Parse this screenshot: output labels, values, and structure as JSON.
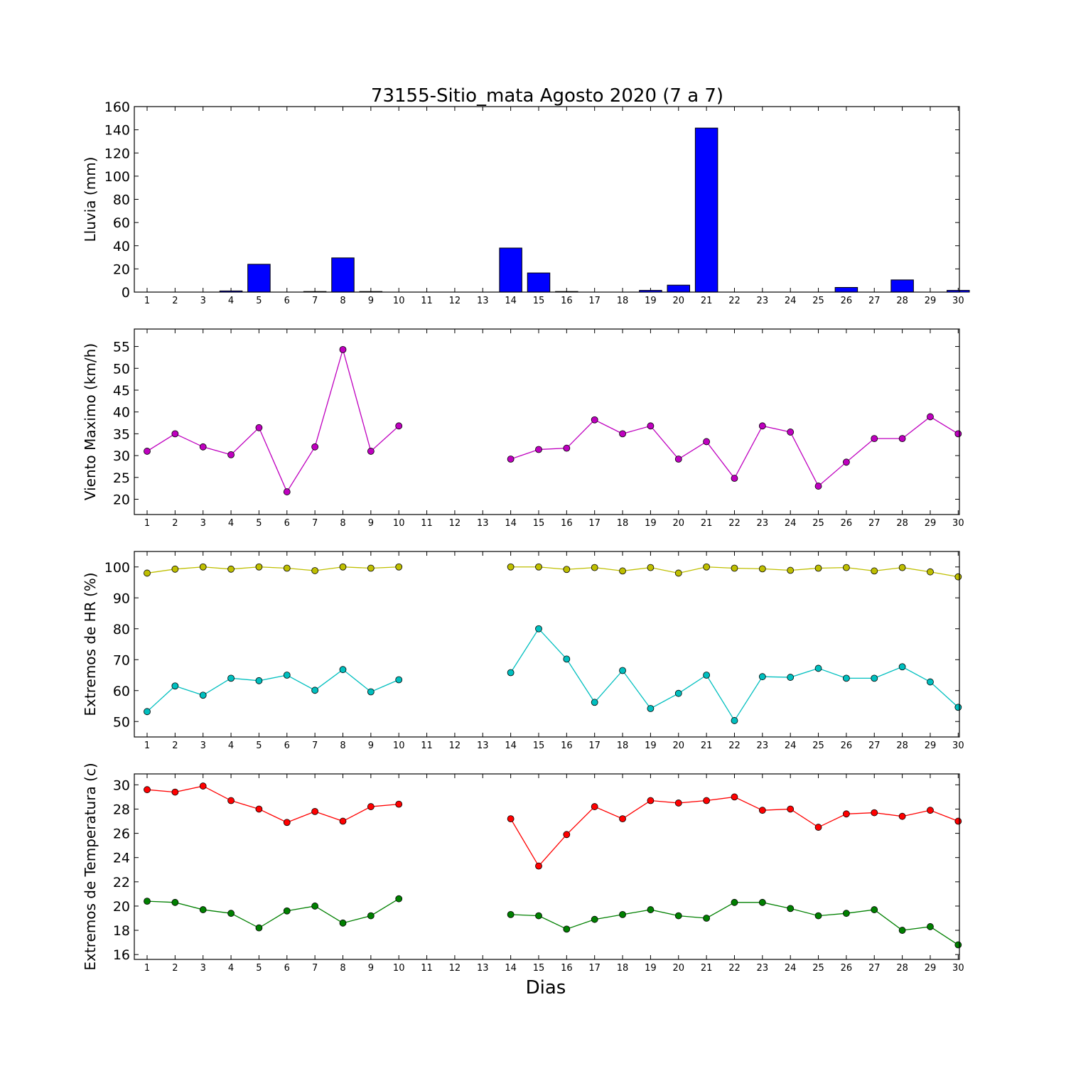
{
  "chart_data": {
    "title": "73155-Sitio_mata Agosto 2020  (7 a 7)",
    "xlabel": "Dias",
    "x": [
      1,
      2,
      3,
      4,
      5,
      6,
      7,
      8,
      9,
      10,
      11,
      12,
      13,
      14,
      15,
      16,
      17,
      18,
      19,
      20,
      21,
      22,
      23,
      24,
      25,
      26,
      27,
      28,
      29,
      30
    ],
    "panels": [
      {
        "type": "bar",
        "ylabel": "Lluvia (mm)",
        "ylim": [
          0,
          160
        ],
        "yticks": [
          0,
          20,
          40,
          60,
          80,
          100,
          120,
          140,
          160
        ],
        "series": [
          {
            "color": "#0000ff",
            "values": [
              0,
              0,
              0,
              1,
              24,
              0,
              0.5,
              29.5,
              0.5,
              0,
              0,
              0,
              0,
              38,
              16.5,
              0.5,
              0,
              0,
              1.5,
              6,
              141.5,
              0,
              0,
              0,
              0,
              4,
              0,
              10.5,
              0,
              1.5
            ]
          }
        ]
      },
      {
        "type": "line",
        "ylabel": "Viento Maximo (km/h)",
        "ylim": [
          16.5,
          59
        ],
        "yticks": [
          20,
          25,
          30,
          35,
          40,
          45,
          50,
          55
        ],
        "series": [
          {
            "color": "#bf00bf",
            "values": [
              31,
              35,
              32,
              30.2,
              36.4,
              21.7,
              32,
              54.3,
              31,
              36.8,
              null,
              null,
              null,
              29.2,
              31.4,
              31.7,
              38.2,
              35,
              36.8,
              29.2,
              33.2,
              24.8,
              36.8,
              35.4,
              23,
              28.5,
              33.9,
              33.9,
              38.9,
              35
            ]
          }
        ]
      },
      {
        "type": "line",
        "ylabel": "Extremos de HR (%)",
        "ylim": [
          45,
          105
        ],
        "yticks": [
          50,
          60,
          70,
          80,
          90,
          100
        ],
        "series": [
          {
            "color": "#bfbf00",
            "values": [
              98,
              99.3,
              100,
              99.3,
              100,
              99.6,
              98.8,
              100,
              99.6,
              100,
              null,
              null,
              null,
              100,
              100,
              99.2,
              99.8,
              98.7,
              99.8,
              98,
              100,
              99.6,
              99.4,
              98.9,
              99.6,
              99.8,
              98.7,
              99.8,
              98.4,
              96.8
            ]
          },
          {
            "color": "#00bfbf",
            "values": [
              53.2,
              61.5,
              58.5,
              64,
              63.2,
              65,
              60.1,
              66.8,
              59.6,
              63.5,
              null,
              null,
              null,
              65.8,
              80,
              70.2,
              56.2,
              66.5,
              54.2,
              59.1,
              65,
              50.3,
              64.5,
              64.3,
              67.2,
              64,
              64,
              67.7,
              62.8,
              54.6
            ]
          }
        ]
      },
      {
        "type": "line",
        "ylabel": "Extremos de Temperatura (c)",
        "ylim": [
          15.6,
          30.9
        ],
        "yticks": [
          16,
          18,
          20,
          22,
          24,
          26,
          28,
          30
        ],
        "series": [
          {
            "color": "#ff0000",
            "values": [
              29.6,
              29.4,
              29.9,
              28.7,
              28,
              26.9,
              27.8,
              27,
              28.2,
              28.4,
              null,
              null,
              null,
              27.2,
              23.3,
              25.9,
              28.2,
              27.2,
              28.7,
              28.5,
              28.7,
              29,
              27.9,
              28,
              26.5,
              27.6,
              27.7,
              27.4,
              27.9,
              27
            ]
          },
          {
            "color": "#008000",
            "values": [
              20.4,
              20.3,
              19.7,
              19.4,
              18.2,
              19.6,
              20,
              18.6,
              19.2,
              20.6,
              null,
              null,
              null,
              19.3,
              19.2,
              18.1,
              18.9,
              19.3,
              19.7,
              19.2,
              19,
              20.3,
              20.3,
              19.8,
              19.2,
              19.4,
              19.7,
              18,
              18.3,
              16.8
            ]
          }
        ]
      }
    ]
  }
}
